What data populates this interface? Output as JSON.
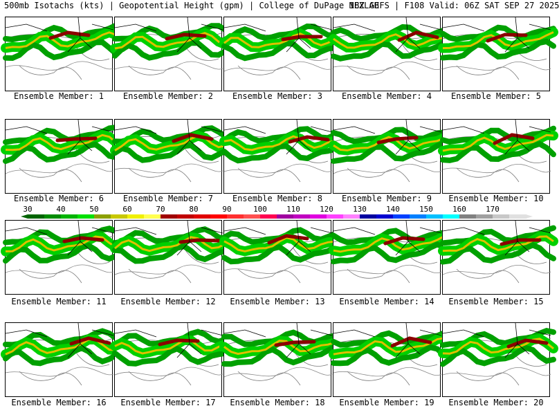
{
  "header": {
    "left": "500mb Isotachs (kts) | Geopotential Height (gpm) | College of DuPage NEXLAB",
    "right": "18Z GEFS | F108 Valid: 06Z SAT SEP 27 2025"
  },
  "members": [
    "Ensemble Member: 1",
    "Ensemble Member: 2",
    "Ensemble Member: 3",
    "Ensemble Member: 4",
    "Ensemble Member: 5",
    "Ensemble Member: 6",
    "Ensemble Member: 7",
    "Ensemble Member: 8",
    "Ensemble Member: 9",
    "Ensemble Member: 10",
    "Ensemble Member: 11",
    "Ensemble Member: 12",
    "Ensemble Member: 13",
    "Ensemble Member: 14",
    "Ensemble Member: 15",
    "Ensemble Member: 16",
    "Ensemble Member: 17",
    "Ensemble Member: 18",
    "Ensemble Member: 19",
    "Ensemble Member: 20"
  ],
  "colorbar": {
    "labels": [
      "30",
      "40",
      "50",
      "60",
      "70",
      "80",
      "90",
      "100",
      "110",
      "120",
      "130",
      "140",
      "150",
      "160",
      "170"
    ],
    "colors": [
      "#006400",
      "#008c00",
      "#00b400",
      "#00e000",
      "#8ca000",
      "#c8c800",
      "#f0f000",
      "#ffff50",
      "#a00000",
      "#c00000",
      "#e00000",
      "#ff0000",
      "#ff3030",
      "#ff5050",
      "#ff0050",
      "#a000a0",
      "#c000c0",
      "#e000e0",
      "#ff40ff",
      "#ff80ff",
      "#0000a0",
      "#0000d0",
      "#0040ff",
      "#0080ff",
      "#00c0ff",
      "#00ffff",
      "#808080",
      "#a0a0a0",
      "#c8c8c8",
      "#e0e0e0"
    ]
  }
}
